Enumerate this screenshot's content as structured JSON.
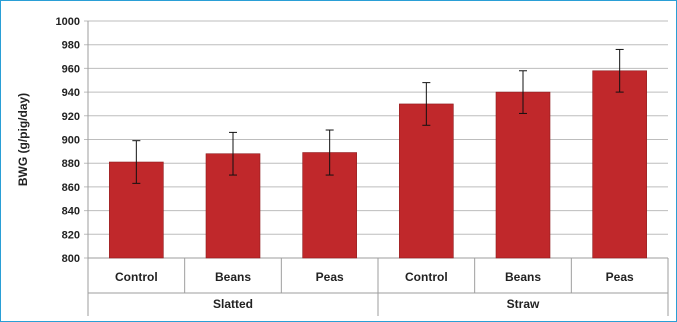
{
  "chart_data": {
    "type": "bar",
    "title": "",
    "xlabel": "",
    "ylabel": "BWG (g/pig/day)",
    "ylim": [
      800,
      1000
    ],
    "yticks": [
      800,
      820,
      840,
      860,
      880,
      900,
      920,
      940,
      960,
      980,
      1000
    ],
    "grid": true,
    "legend": "none",
    "categories": [
      "Control",
      "Beans",
      "Peas",
      "Control",
      "Beans",
      "Peas"
    ],
    "groups": [
      {
        "label": "Slatted",
        "count": 3
      },
      {
        "label": "Straw",
        "count": 3
      }
    ],
    "values": [
      881,
      888,
      889,
      930,
      940,
      958
    ],
    "errors": [
      18,
      18,
      19,
      18,
      18,
      18
    ],
    "colors": {
      "bar": "#c0282b",
      "bar_edge": "#8e1a1d",
      "grid": "#bdbdbd",
      "frame": "#2a9fd6"
    }
  }
}
